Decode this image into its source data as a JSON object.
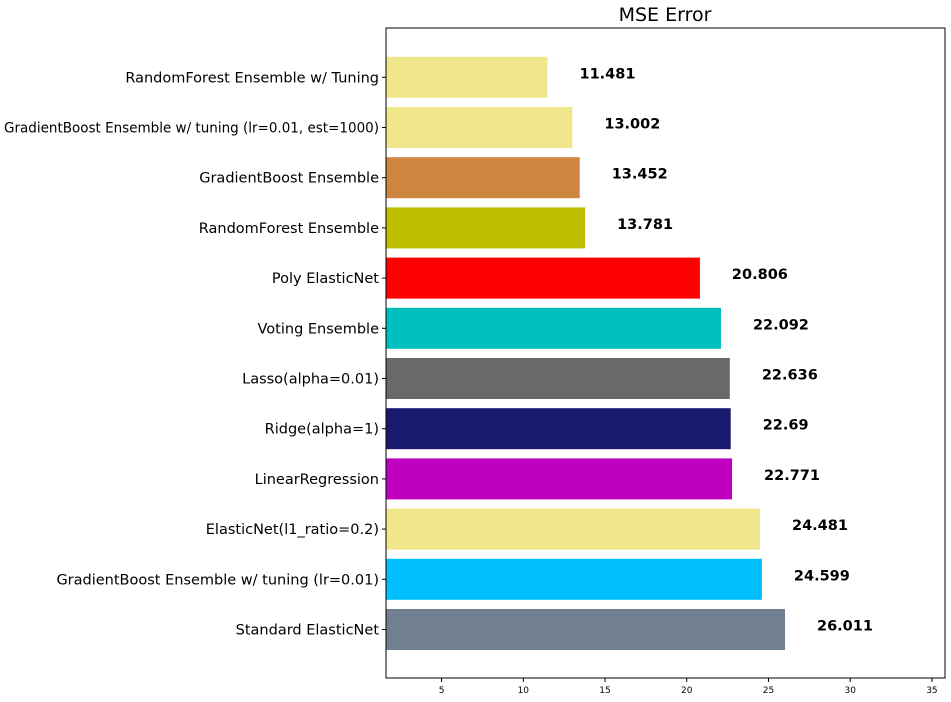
{
  "chart_data": {
    "type": "bar",
    "orientation": "horizontal",
    "title": "MSE Error",
    "xlabel": "",
    "ylabel": "",
    "xlim": [
      1.6,
      35.8
    ],
    "xticks": [
      5,
      10,
      15,
      20,
      25,
      30,
      35
    ],
    "grid": false,
    "bar_label_format": "plain",
    "bars": [
      {
        "category": "Standard ElasticNet",
        "value": 26.011,
        "label": "26.011",
        "color": "#708090"
      },
      {
        "category": "GradientBoost Ensemble w/ tuning (lr=0.01)",
        "value": 24.599,
        "label": "24.599",
        "color": "#00BFFF"
      },
      {
        "category": "ElasticNet(l1_ratio=0.2)",
        "value": 24.481,
        "label": "24.481",
        "color": "#F0E68C"
      },
      {
        "category": "LinearRegression",
        "value": 22.771,
        "label": "22.771",
        "color": "#BF00BF"
      },
      {
        "category": "Ridge(alpha=1)",
        "value": 22.69,
        "label": "22.69",
        "color": "#191970"
      },
      {
        "category": "Lasso(alpha=0.01)",
        "value": 22.636,
        "label": "22.636",
        "color": "#696969"
      },
      {
        "category": "Voting Ensemble",
        "value": 22.092,
        "label": "22.092",
        "color": "#00BFBF"
      },
      {
        "category": "Poly ElasticNet",
        "value": 20.806,
        "label": "20.806",
        "color": "#FF0000"
      },
      {
        "category": "RandomForest Ensemble",
        "value": 13.781,
        "label": "13.781",
        "color": "#BFBF00"
      },
      {
        "category": "GradientBoost Ensemble",
        "value": 13.452,
        "label": "13.452",
        "color": "#CD853F"
      },
      {
        "category": "GradientBoost Ensemble w/ tuning (lr=0.01, est=1000)",
        "value": 13.002,
        "label": "13.002",
        "color": "#F0E68C"
      },
      {
        "category": "RandomForest Ensemble w/ Tuning",
        "value": 11.481,
        "label": "11.481",
        "color": "#F0E68C"
      }
    ]
  }
}
